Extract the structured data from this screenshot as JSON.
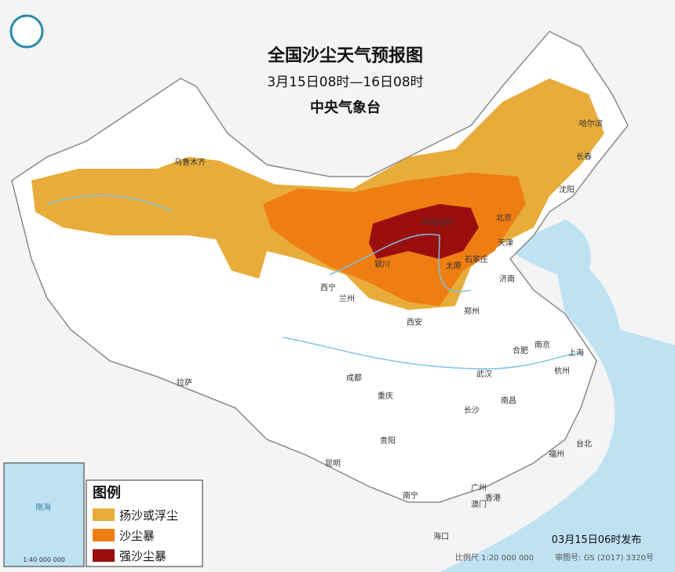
{
  "header": {
    "title": "全国沙尘天气预报图",
    "period": "3月15日08时—16日08时",
    "agency": "中央气象台"
  },
  "legend": {
    "title": "图例",
    "items": [
      {
        "label": "扬沙或浮尘",
        "color": "#e8ac3a"
      },
      {
        "label": "沙尘暴",
        "color": "#ef7e12"
      },
      {
        "label": "强沙尘暴",
        "color": "#9b0e0e"
      }
    ]
  },
  "cities": [
    "乌鲁木齐",
    "哈尔滨",
    "长春",
    "沈阳",
    "北京",
    "天津",
    "石家庄",
    "太原",
    "济南",
    "西宁",
    "兰州",
    "西安",
    "郑州",
    "合肥",
    "南京",
    "上海",
    "杭州",
    "武汉",
    "成都",
    "重庆",
    "拉萨",
    "长沙",
    "南昌",
    "贵阳",
    "福州",
    "台北",
    "昆明",
    "广州",
    "香港",
    "澳门",
    "南宁",
    "海口",
    "银川",
    "呼和浩特"
  ],
  "footer": {
    "published": "03月15日06时发布",
    "scale": "比例尺 1:20 000 000",
    "approval": "审图号: GS (2017) 3320号"
  },
  "inset": {
    "sea": "南海",
    "scale": "1:40 000 000"
  }
}
